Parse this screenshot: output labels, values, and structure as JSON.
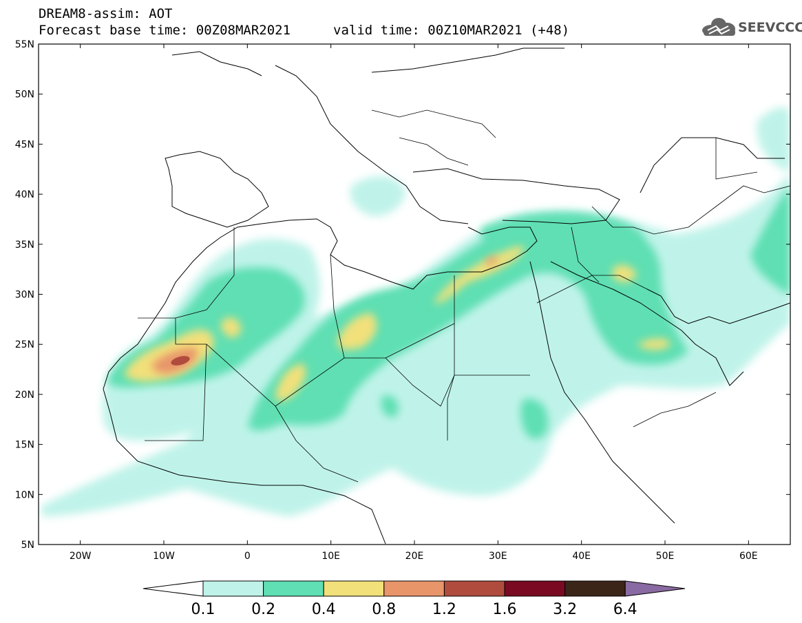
{
  "header": {
    "line1": "DREAM8-assim: AOT",
    "line2": "Forecast base time: 00Z08MAR2021",
    "valid": "valid time: 00Z10MAR2021 (+48)"
  },
  "logo": {
    "text": "SEEVCCC",
    "icon": "cloud-icon"
  },
  "map": {
    "lon_range": [
      -25,
      65
    ],
    "lat_range": [
      5,
      55
    ],
    "lat_ticks": [
      "55N",
      "50N",
      "45N",
      "40N",
      "35N",
      "30N",
      "25N",
      "20N",
      "15N",
      "10N",
      "5N"
    ],
    "lon_ticks": [
      "20W",
      "10W",
      "0",
      "10E",
      "20E",
      "30E",
      "40E",
      "50E",
      "60E"
    ]
  },
  "colorbar": {
    "labels": [
      "0.1",
      "0.2",
      "0.4",
      "0.8",
      "1.2",
      "1.6",
      "3.2",
      "6.4"
    ],
    "colors": [
      "#bff3e9",
      "#5fdfb3",
      "#f2e07a",
      "#e8956a",
      "#b04c3d",
      "#7a0a22",
      "#3b2418",
      "#8a6aa2"
    ]
  }
}
